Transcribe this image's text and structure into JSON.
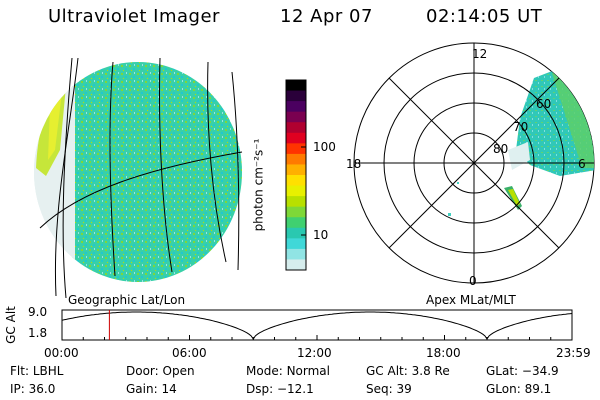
{
  "header": {
    "title": "Ultraviolet Imager",
    "date": "12 Apr 07",
    "time": "02:14:05 UT"
  },
  "colorbar": {
    "label": "photon cm⁻²s⁻¹",
    "ticks": [
      "100",
      "10"
    ],
    "colors": [
      "#000000",
      "#2a003a",
      "#4b0060",
      "#7a0050",
      "#b00030",
      "#e00020",
      "#ff3300",
      "#ff7a00",
      "#ffb000",
      "#ffe000",
      "#e8f000",
      "#b8e000",
      "#7ed838",
      "#40d070",
      "#2ac8b0",
      "#40d8d8",
      "#90e4e4",
      "#d6eded"
    ]
  },
  "left_panel": {
    "caption": "Geographic Lat/Lon"
  },
  "polar": {
    "caption": "Apex MLat/MLT",
    "mlt_labels": {
      "top": "12",
      "left": "18",
      "right": "6",
      "bottom": "0"
    },
    "lat_labels": [
      "60",
      "70",
      "80"
    ]
  },
  "altitude_strip": {
    "ylabel": "GC Alt",
    "y_ticks": [
      "9.0",
      "1.8"
    ],
    "time_ticks": [
      "00:00",
      "06:00",
      "12:00",
      "18:00",
      "23:59"
    ],
    "current_marker_hours": 2.23,
    "marker_color": "#cc0000"
  },
  "footer": {
    "rows": [
      [
        {
          "k": "Flt:",
          "v": "LBHL"
        },
        {
          "k": "Door:",
          "v": "Open"
        },
        {
          "k": "Mode:",
          "v": "Normal"
        },
        {
          "k": "GC Alt:",
          "v": "3.8 Re"
        },
        {
          "k": "GLat:",
          "v": "−34.9"
        }
      ],
      [
        {
          "k": "IP:",
          "v": "36.0"
        },
        {
          "k": "Gain:",
          "v": "14"
        },
        {
          "k": "Dsp:",
          "v": "−12.1"
        },
        {
          "k": "Seq:",
          "v": "39"
        },
        {
          "k": "GLon:",
          "v": "89.1"
        }
      ]
    ]
  }
}
